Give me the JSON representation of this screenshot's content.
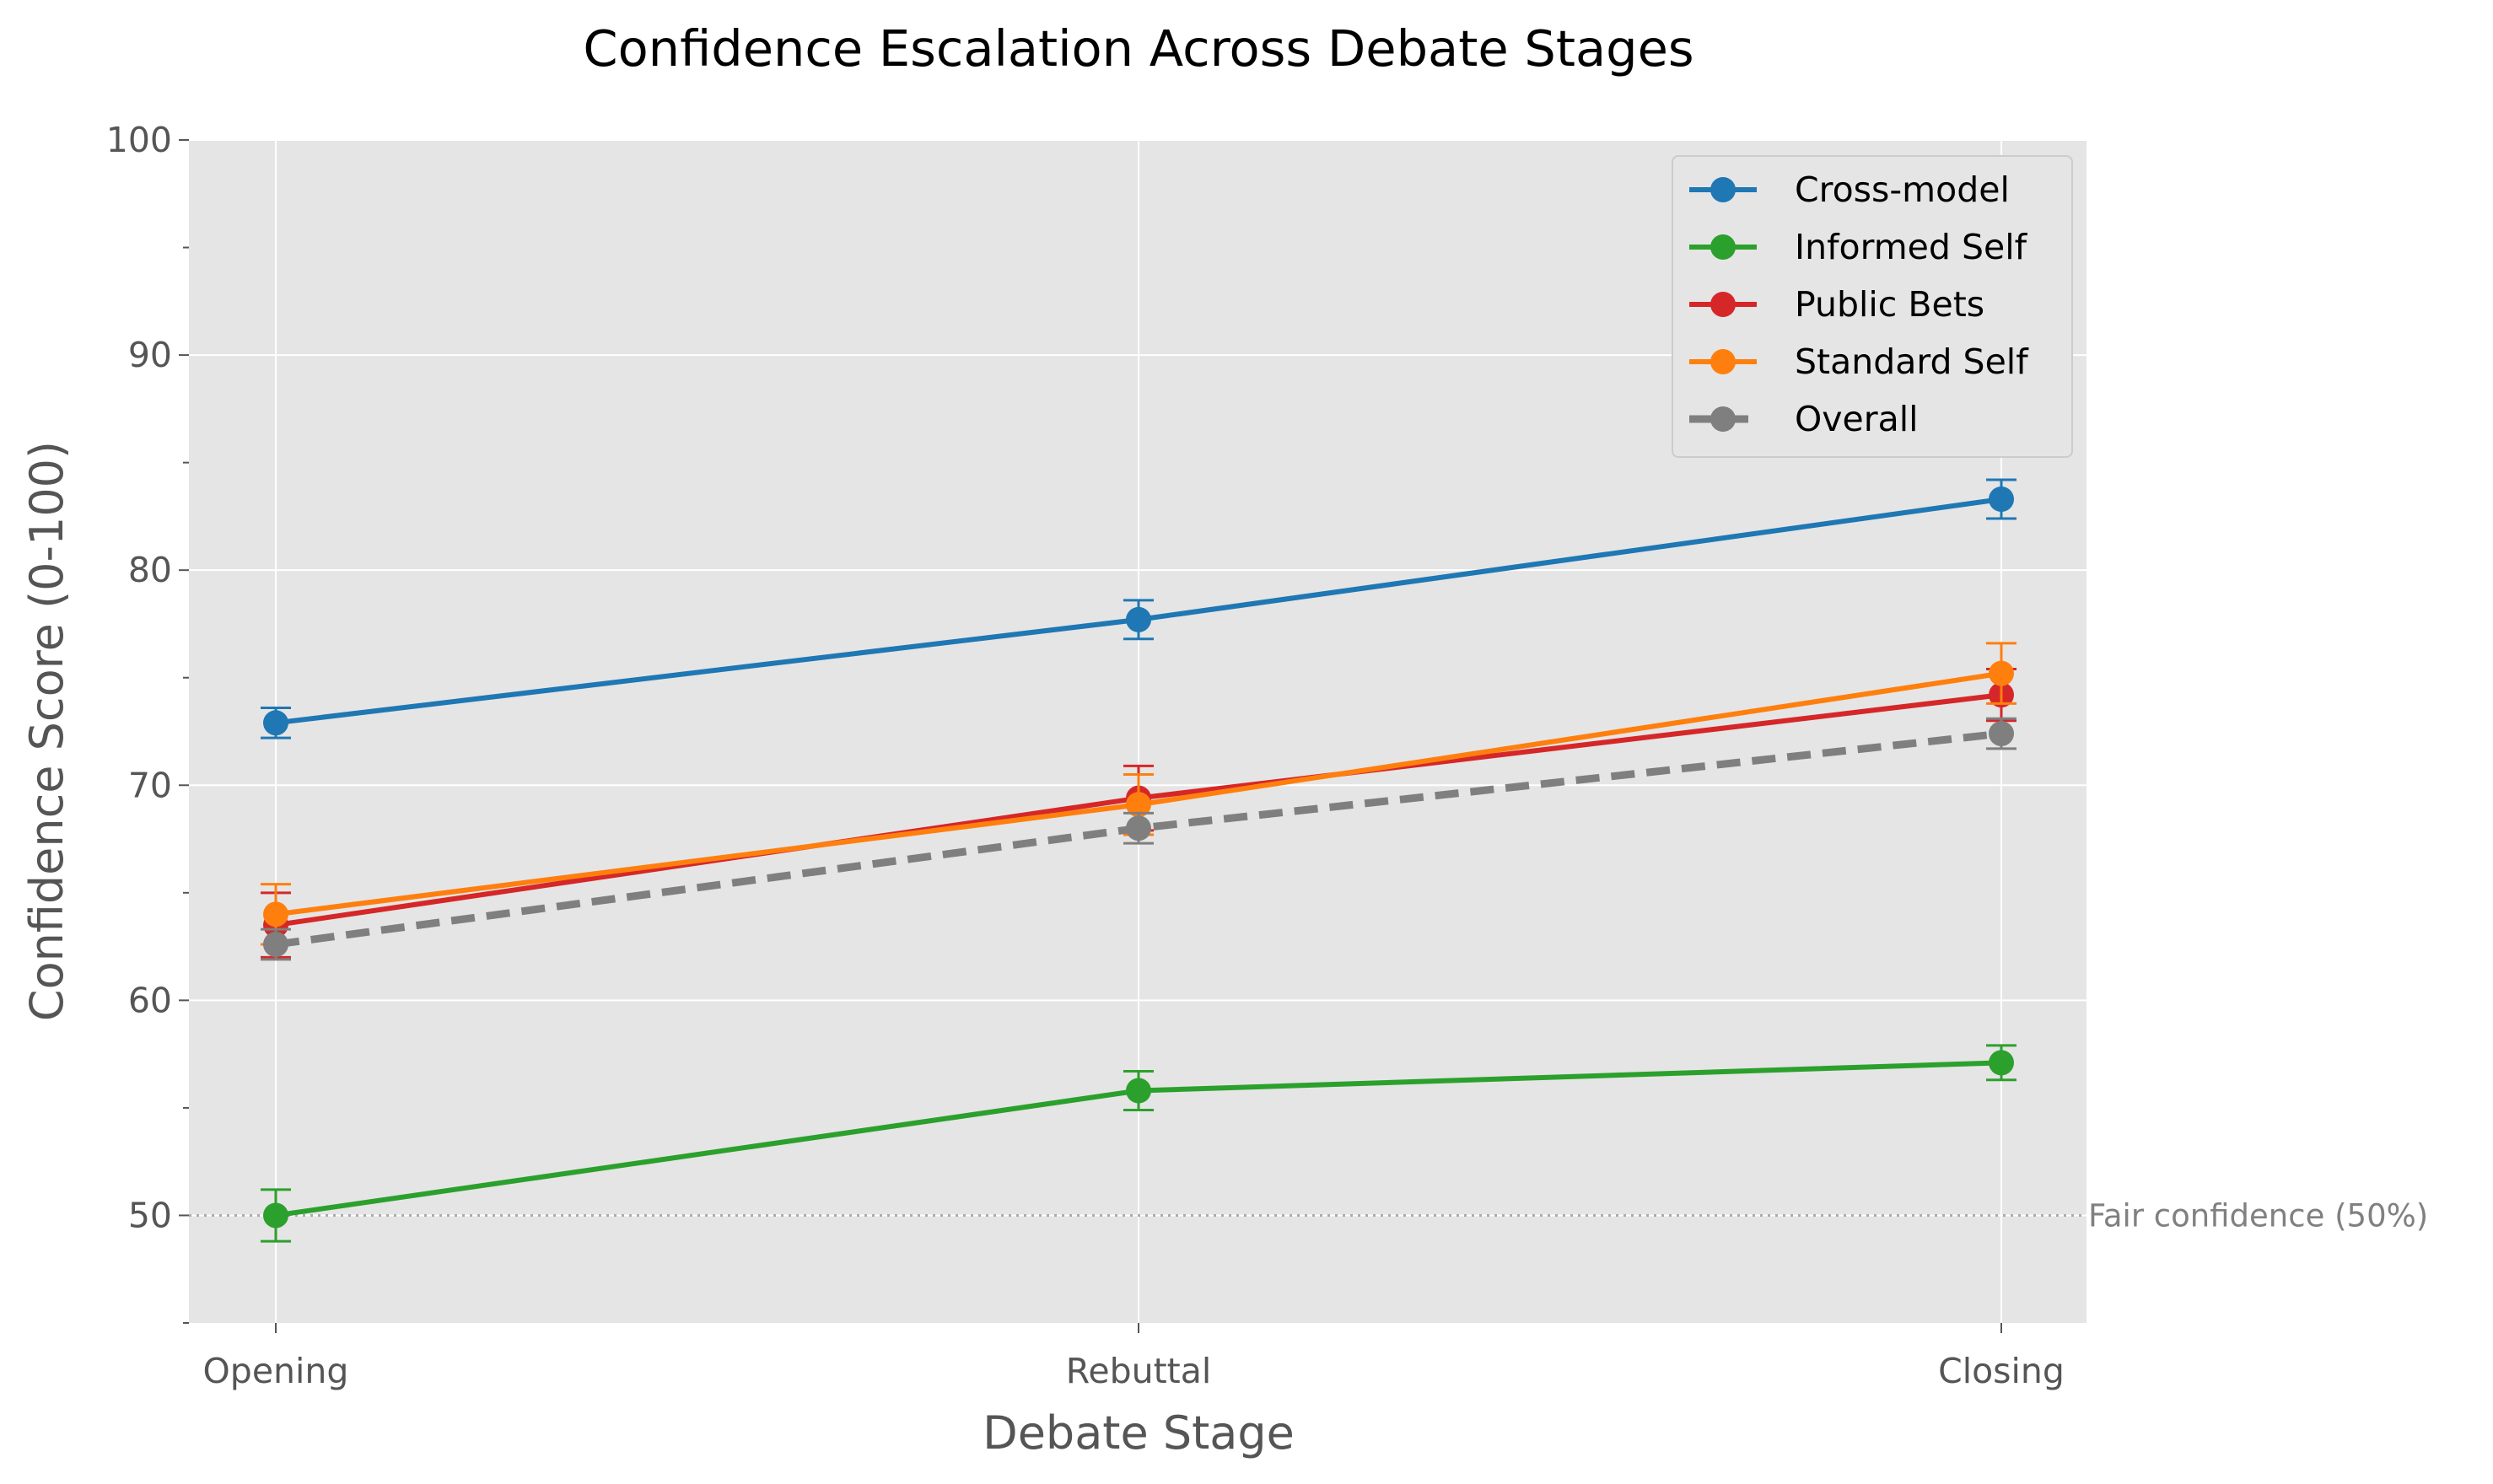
{
  "chart_data": {
    "type": "line",
    "title": "Confidence Escalation Across Debate Stages",
    "xlabel": "Debate Stage",
    "ylabel": "Confidence Score (0-100)",
    "categories": [
      "Opening",
      "Rebuttal",
      "Closing"
    ],
    "ylim": [
      45,
      100
    ],
    "yticks": [
      50,
      60,
      70,
      80,
      90,
      100
    ],
    "yminor_ticks": [
      45,
      55,
      65,
      75,
      85,
      95
    ],
    "grid": true,
    "legend_position": "top-right",
    "series": [
      {
        "name": "Cross-model",
        "color": "#1f77b4",
        "style": "solid",
        "values": [
          72.9,
          77.7,
          83.3
        ],
        "errors": [
          0.7,
          0.9,
          0.9
        ]
      },
      {
        "name": "Informed Self",
        "color": "#2ca02c",
        "style": "solid",
        "values": [
          50.0,
          55.8,
          57.1
        ],
        "errors": [
          1.2,
          0.9,
          0.8
        ]
      },
      {
        "name": "Public Bets",
        "color": "#d62728",
        "style": "solid",
        "values": [
          63.5,
          69.4,
          74.2
        ],
        "errors": [
          1.5,
          1.5,
          1.2
        ]
      },
      {
        "name": "Standard Self",
        "color": "#ff7f0e",
        "style": "solid",
        "values": [
          64.0,
          69.1,
          75.2
        ],
        "errors": [
          1.4,
          1.4,
          1.4
        ]
      },
      {
        "name": "Overall",
        "color": "#7f7f7f",
        "style": "dashed",
        "values": [
          62.6,
          68.0,
          72.4
        ],
        "errors": [
          0.7,
          0.7,
          0.7
        ]
      }
    ],
    "reference_line": {
      "y": 50,
      "label": "Fair confidence (50%)",
      "color": "#aaaaaa"
    }
  }
}
